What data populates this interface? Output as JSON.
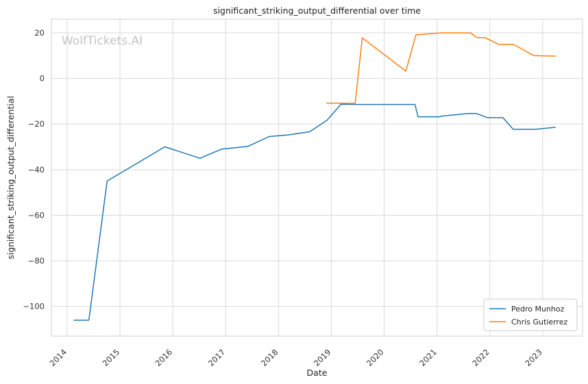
{
  "chart_data": {
    "type": "line",
    "title": "significant_striking_output_differential over time",
    "xlabel": "Date",
    "ylabel": "significant_striking_output_differential",
    "watermark": "WolfTickets.AI",
    "x_ticks": [
      "2014",
      "2015",
      "2016",
      "2017",
      "2018",
      "2019",
      "2020",
      "2021",
      "2022",
      "2023"
    ],
    "y_ticks": [
      20,
      0,
      -20,
      -40,
      -60,
      -80,
      -100
    ],
    "ylim": [
      -113,
      26
    ],
    "grid": true,
    "legend_position": "bottom-right",
    "series": [
      {
        "name": "Pedro Munhoz",
        "color": "#1f77b4",
        "points": [
          [
            "2014-02-15",
            -106
          ],
          [
            "2014-05-31",
            -106
          ],
          [
            "2014-10-04",
            -45
          ],
          [
            "2015-11-07",
            -30
          ],
          [
            "2016-07-07",
            -35
          ],
          [
            "2016-12-03",
            -31
          ],
          [
            "2017-06-03",
            -29.8
          ],
          [
            "2017-10-28",
            -25.5
          ],
          [
            "2018-03-03",
            -24.8
          ],
          [
            "2018-08-04",
            -23.4
          ],
          [
            "2018-12-01",
            -18.4
          ],
          [
            "2019-03-09",
            -11.3
          ],
          [
            "2019-07-01",
            -11.4
          ],
          [
            "2020-08-01",
            -11.4
          ],
          [
            "2020-08-22",
            -16.8
          ],
          [
            "2021-01-15",
            -16.8
          ],
          [
            "2021-02-01",
            -16.5
          ],
          [
            "2021-08-01",
            -15.4
          ],
          [
            "2021-10-01",
            -15.4
          ],
          [
            "2021-12-15",
            -17.2
          ],
          [
            "2022-04-01",
            -17.2
          ],
          [
            "2022-06-11",
            -22.3
          ],
          [
            "2022-11-15",
            -22.3
          ],
          [
            "2023-04-01",
            -21.4
          ]
        ]
      },
      {
        "name": "Chris Gutierrez",
        "color": "#ff7f0e",
        "points": [
          [
            "2018-11-27",
            -10.8
          ],
          [
            "2019-06-15",
            -10.9
          ],
          [
            "2019-08-03",
            17.8
          ],
          [
            "2020-05-30",
            3.2
          ],
          [
            "2020-08-08",
            19.1
          ],
          [
            "2021-02-01",
            20
          ],
          [
            "2021-08-21",
            20
          ],
          [
            "2021-10-01",
            18
          ],
          [
            "2021-12-01",
            17.8
          ],
          [
            "2022-03-01",
            15
          ],
          [
            "2022-06-15",
            14.9
          ],
          [
            "2022-11-01",
            10
          ],
          [
            "2023-04-01",
            9.8
          ]
        ]
      }
    ]
  }
}
